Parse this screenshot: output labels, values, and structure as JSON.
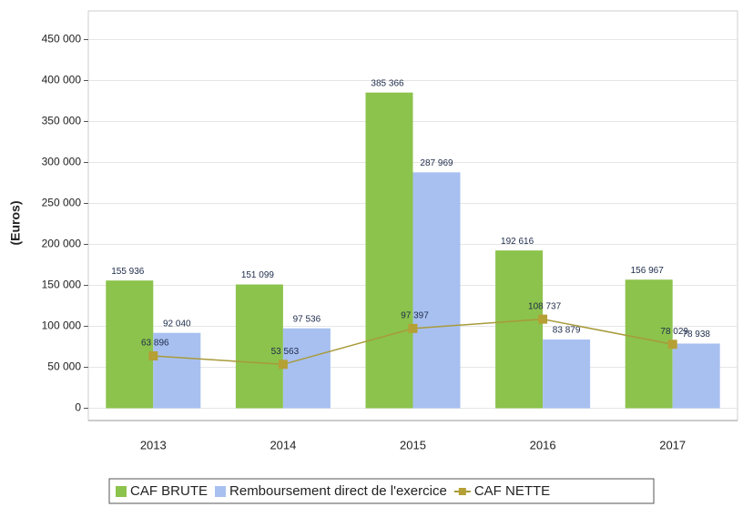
{
  "chart_data": {
    "type": "bar-line",
    "y_label": "(Euros)",
    "categories": [
      "2013",
      "2014",
      "2015",
      "2016",
      "2017"
    ],
    "series": [
      {
        "name": "CAF BRUTE",
        "type": "bar",
        "color": "#8cc34c",
        "values": [
          155936,
          151099,
          385366,
          192616,
          156967
        ],
        "value_labels": [
          "155 936",
          "151 099",
          "385 366",
          "192 616",
          "156 967"
        ]
      },
      {
        "name": "Remboursement direct de l'exercice",
        "type": "bar",
        "color": "#a8c0f0",
        "values": [
          92040,
          97536,
          287969,
          83879,
          78938
        ],
        "value_labels": [
          "92 040",
          "97 536",
          "287 969",
          "83 879",
          "78 938"
        ]
      },
      {
        "name": "CAF NETTE",
        "type": "line",
        "color": "#a89a3a",
        "values": [
          63896,
          53563,
          97397,
          108737,
          78029
        ],
        "value_labels": [
          "63 896",
          "53 563",
          "97 397",
          "108 737",
          "78 029"
        ]
      }
    ],
    "ylim": [
      -15000,
      485000
    ],
    "yticks": [
      {
        "value": 0,
        "label": "0"
      },
      {
        "value": 50000,
        "label": "50 000"
      },
      {
        "value": 100000,
        "label": "100 000"
      },
      {
        "value": 150000,
        "label": "150 000"
      },
      {
        "value": 200000,
        "label": "200 000"
      },
      {
        "value": 250000,
        "label": "250 000"
      },
      {
        "value": 300000,
        "label": "300 000"
      },
      {
        "value": 350000,
        "label": "350 000"
      },
      {
        "value": 400000,
        "label": "400 000"
      },
      {
        "value": 450000,
        "label": "450 000"
      }
    ],
    "grid": true,
    "legend": "bottom"
  }
}
